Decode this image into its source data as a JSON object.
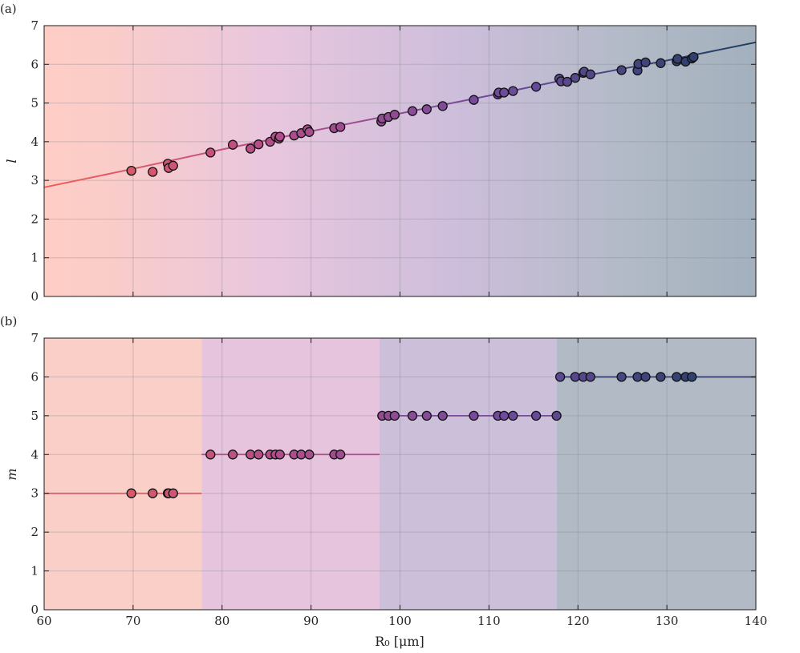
{
  "chart_data": [
    {
      "panel_label": "(a)",
      "type": "scatter",
      "ylabel": "l",
      "xlabel": "",
      "xlim": [
        60,
        140
      ],
      "ylim": [
        0,
        7
      ],
      "xticks": [
        60,
        70,
        80,
        90,
        100,
        110,
        120,
        130,
        140
      ],
      "yticks": [
        0,
        1,
        2,
        3,
        4,
        5,
        6,
        7
      ],
      "grid": true,
      "background": "horizontal color gradient from salmon (left) through pink and lavender to slate blue (right)",
      "fit_line": {
        "type": "line",
        "points": [
          [
            60,
            2.82
          ],
          [
            70,
            3.3
          ],
          [
            80,
            3.8
          ],
          [
            90,
            4.27
          ],
          [
            100,
            4.73
          ],
          [
            110,
            5.19
          ],
          [
            120,
            5.67
          ],
          [
            130,
            6.1
          ],
          [
            140,
            6.57
          ]
        ]
      },
      "points": [
        [
          69.8,
          3.25
        ],
        [
          72.2,
          3.22
        ],
        [
          73.9,
          3.43
        ],
        [
          74.0,
          3.32
        ],
        [
          74.5,
          3.38
        ],
        [
          78.7,
          3.72
        ],
        [
          81.2,
          3.92
        ],
        [
          83.2,
          3.82
        ],
        [
          84.1,
          3.93
        ],
        [
          85.4,
          4.0
        ],
        [
          86.0,
          4.13
        ],
        [
          86.4,
          4.08
        ],
        [
          86.5,
          4.13
        ],
        [
          88.1,
          4.16
        ],
        [
          88.9,
          4.22
        ],
        [
          89.6,
          4.32
        ],
        [
          89.8,
          4.25
        ],
        [
          92.6,
          4.35
        ],
        [
          93.3,
          4.38
        ],
        [
          97.9,
          4.52
        ],
        [
          98.0,
          4.6
        ],
        [
          98.7,
          4.64
        ],
        [
          99.4,
          4.7
        ],
        [
          101.4,
          4.79
        ],
        [
          103.0,
          4.84
        ],
        [
          104.8,
          4.92
        ],
        [
          108.3,
          5.08
        ],
        [
          111.0,
          5.22
        ],
        [
          111.1,
          5.27
        ],
        [
          111.7,
          5.27
        ],
        [
          112.7,
          5.31
        ],
        [
          115.3,
          5.42
        ],
        [
          117.9,
          5.63
        ],
        [
          118.1,
          5.56
        ],
        [
          118.8,
          5.55
        ],
        [
          119.7,
          5.65
        ],
        [
          120.6,
          5.78
        ],
        [
          120.7,
          5.81
        ],
        [
          121.4,
          5.74
        ],
        [
          124.9,
          5.85
        ],
        [
          126.7,
          5.84
        ],
        [
          126.8,
          6.01
        ],
        [
          127.6,
          6.05
        ],
        [
          129.3,
          6.03
        ],
        [
          131.1,
          6.08
        ],
        [
          131.2,
          6.14
        ],
        [
          132.1,
          6.07
        ],
        [
          132.8,
          6.15
        ],
        [
          133.0,
          6.19
        ]
      ]
    },
    {
      "panel_label": "(b)",
      "type": "scatter",
      "ylabel": "m",
      "xlabel": "R₀ [μm]",
      "xlim": [
        60,
        140
      ],
      "ylim": [
        0,
        7
      ],
      "xticks": [
        60,
        70,
        80,
        90,
        100,
        110,
        120,
        130,
        140
      ],
      "yticks": [
        0,
        1,
        2,
        3,
        4,
        5,
        6,
        7
      ],
      "grid": true,
      "bands": [
        {
          "x0": 60,
          "x1": 77.7,
          "color": "#f9cfc7"
        },
        {
          "x0": 77.7,
          "x1": 97.7,
          "color": "#e7c4dd"
        },
        {
          "x0": 97.7,
          "x1": 117.6,
          "color": "#ccbfd9"
        },
        {
          "x0": 117.6,
          "x1": 140,
          "color": "#b1bac5"
        }
      ],
      "step_lines": [
        {
          "x0": 60,
          "x1": 77.7,
          "y": 3
        },
        {
          "x0": 77.7,
          "x1": 97.7,
          "y": 4
        },
        {
          "x0": 97.7,
          "x1": 117.6,
          "y": 5
        },
        {
          "x0": 117.6,
          "x1": 140,
          "y": 6
        }
      ],
      "points": [
        [
          69.8,
          3
        ],
        [
          72.2,
          3
        ],
        [
          73.9,
          3
        ],
        [
          74.0,
          3
        ],
        [
          74.5,
          3
        ],
        [
          78.7,
          4
        ],
        [
          81.2,
          4
        ],
        [
          83.2,
          4
        ],
        [
          84.1,
          4
        ],
        [
          85.4,
          4
        ],
        [
          86.0,
          4
        ],
        [
          86.5,
          4
        ],
        [
          88.1,
          4
        ],
        [
          88.9,
          4
        ],
        [
          89.8,
          4
        ],
        [
          92.6,
          4
        ],
        [
          93.3,
          4
        ],
        [
          98.0,
          5
        ],
        [
          98.7,
          5
        ],
        [
          99.4,
          5
        ],
        [
          101.4,
          5
        ],
        [
          103.0,
          5
        ],
        [
          104.8,
          5
        ],
        [
          108.3,
          5
        ],
        [
          111.0,
          5
        ],
        [
          111.7,
          5
        ],
        [
          112.7,
          5
        ],
        [
          115.3,
          5
        ],
        [
          117.6,
          5
        ],
        [
          118.0,
          6
        ],
        [
          119.7,
          6
        ],
        [
          120.6,
          6
        ],
        [
          121.4,
          6
        ],
        [
          124.9,
          6
        ],
        [
          126.7,
          6
        ],
        [
          127.6,
          6
        ],
        [
          129.3,
          6
        ],
        [
          131.1,
          6
        ],
        [
          132.1,
          6
        ],
        [
          132.8,
          6
        ]
      ]
    }
  ],
  "colors": {
    "stops": [
      "#f15f57",
      "#b04d8c",
      "#6a4b9c",
      "#1b3d5e"
    ],
    "gradient_bg": [
      "#fecdc6",
      "#e8c6de",
      "#cdbedb",
      "#aebac6",
      "#a3b0bd"
    ]
  }
}
